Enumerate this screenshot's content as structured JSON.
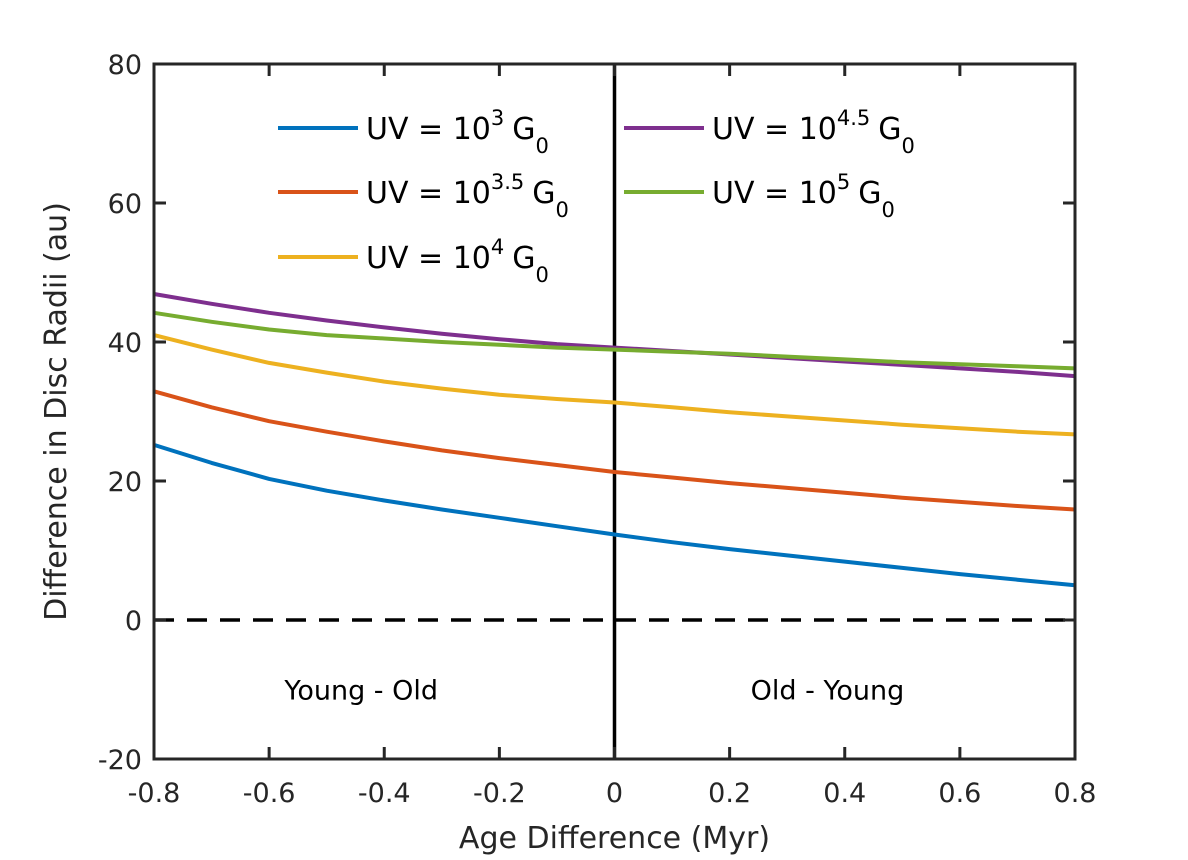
{
  "chart_data": {
    "type": "line",
    "title": "",
    "xlabel": "Age Difference (Myr)",
    "ylabel": "Difference in Disc Radii (au)",
    "xlim": [
      -0.8,
      0.8
    ],
    "ylim": [
      -20,
      80
    ],
    "grid": false,
    "x_ticks": [
      "-0.8",
      "-0.6",
      "-0.4",
      "-0.2",
      "0",
      "0.2",
      "0.4",
      "0.6",
      "0.8"
    ],
    "y_ticks": [
      "-20",
      "0",
      "20",
      "40",
      "60",
      "80"
    ],
    "x": [
      -0.8,
      -0.7,
      -0.6,
      -0.5,
      -0.4,
      -0.3,
      -0.2,
      -0.1,
      0.0,
      0.1,
      0.2,
      0.3,
      0.4,
      0.5,
      0.6,
      0.7,
      0.8
    ],
    "series": [
      {
        "name": "UV = 10^3 G_0",
        "label_base": "UV = 10",
        "label_exp": "3",
        "label_unit": "G",
        "label_sub": "0",
        "color": "#0072BD",
        "values": [
          25.2,
          22.6,
          20.3,
          18.6,
          17.2,
          15.9,
          14.7,
          13.5,
          12.3,
          11.2,
          10.2,
          9.3,
          8.4,
          7.5,
          6.6,
          5.8,
          5.0
        ]
      },
      {
        "name": "UV = 10^3.5 G_0",
        "label_base": "UV = 10",
        "label_exp": "3.5",
        "label_unit": "G",
        "label_sub": "0",
        "color": "#D95319",
        "values": [
          32.9,
          30.6,
          28.6,
          27.1,
          25.7,
          24.4,
          23.3,
          22.3,
          21.3,
          20.5,
          19.7,
          19.0,
          18.3,
          17.6,
          17.0,
          16.4,
          15.9
        ]
      },
      {
        "name": "UV = 10^4 G_0",
        "label_base": "UV = 10",
        "label_exp": "4",
        "label_unit": "G",
        "label_sub": "0",
        "color": "#EDB120",
        "values": [
          41.0,
          38.9,
          37.0,
          35.6,
          34.3,
          33.3,
          32.4,
          31.8,
          31.3,
          30.6,
          29.9,
          29.3,
          28.7,
          28.1,
          27.6,
          27.1,
          26.7
        ]
      },
      {
        "name": "UV = 10^4.5 G_0",
        "label_base": "UV = 10",
        "label_exp": "4.5",
        "label_unit": "G",
        "label_sub": "0",
        "color": "#7E2F8E",
        "values": [
          46.9,
          45.5,
          44.2,
          43.1,
          42.1,
          41.2,
          40.4,
          39.7,
          39.2,
          38.7,
          38.2,
          37.7,
          37.2,
          36.7,
          36.2,
          35.7,
          35.1
        ]
      },
      {
        "name": "UV = 10^5 G_0",
        "label_base": "UV = 10",
        "label_exp": "5",
        "label_unit": "G",
        "label_sub": "0",
        "color": "#77AC30",
        "values": [
          44.2,
          42.9,
          41.8,
          41.0,
          40.5,
          40.0,
          39.6,
          39.2,
          38.9,
          38.6,
          38.3,
          37.9,
          37.5,
          37.1,
          36.8,
          36.5,
          36.2
        ]
      }
    ],
    "reference_lines": [
      {
        "orientation": "horizontal",
        "value": 0,
        "style": "dashed",
        "color": "#000000"
      },
      {
        "orientation": "vertical",
        "value": 0,
        "style": "solid",
        "color": "#000000"
      }
    ],
    "annotations": [
      {
        "text": "Young - Old",
        "x": -0.44,
        "y": -10
      },
      {
        "text": "Old - Young",
        "x": 0.37,
        "y": -10
      }
    ],
    "legend_position": "top-center"
  }
}
